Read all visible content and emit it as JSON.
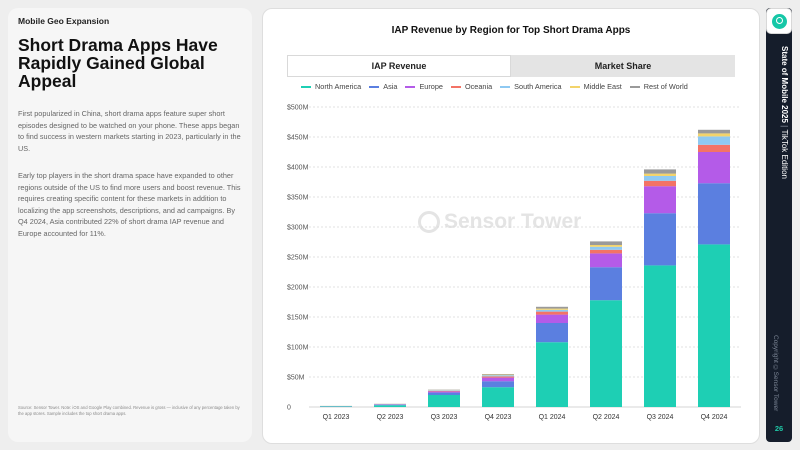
{
  "left": {
    "section": "Mobile Geo Expansion",
    "headline": "Short Drama Apps Have Rapidly Gained Global Appeal",
    "paragraph1": "First popularized in China, short drama apps feature super short episodes designed to be watched on your phone. These apps began to find success in western markets starting in 2023, particularly in the US.",
    "paragraph2": "Early top players in the short drama space have expanded to other regions outside of the US to find more users and boost revenue. This requires creating specific content for these markets in addition to localizing the app screenshots, descriptions, and ad campaigns. By Q4 2024, Asia contributed 22% of short drama IAP revenue and Europe accounted for 11%.",
    "footnote": "Source: Sensor Tower. Note: iOS and Google Play combined. Revenue is gross — inclusive of any percentage taken by the app stores. Sample includes the top short drama apps."
  },
  "tabs": {
    "active": "IAP Revenue",
    "inactive": "Market Share"
  },
  "watermark": "Sensor Tower",
  "rail": {
    "title_bold": "State of Mobile 2025",
    "separator": "|",
    "title_light": "TikTok Edition",
    "copyright": "Copyright ©Sensor Tower",
    "page": "26"
  },
  "chart_data": {
    "type": "bar",
    "stacked": true,
    "title": "IAP Revenue by Region for Top Short Drama Apps",
    "categories": [
      "Q1 2023",
      "Q2 2023",
      "Q3 2023",
      "Q4 2023",
      "Q1 2024",
      "Q2 2024",
      "Q3 2024",
      "Q4 2024"
    ],
    "y_ticks": [
      "0",
      "$50M",
      "$100M",
      "$150M",
      "$200M",
      "$250M",
      "$300M",
      "$350M",
      "$400M",
      "$450M",
      "$500M"
    ],
    "ylim": [
      0,
      500
    ],
    "grid": true,
    "legend_position": "top",
    "series": [
      {
        "name": "North America",
        "color": "#1ecfb4",
        "values": [
          1,
          3,
          20,
          33,
          108,
          178,
          236,
          271
        ]
      },
      {
        "name": "Asia",
        "color": "#5b7fe0",
        "values": [
          0.3,
          1,
          4,
          10,
          32,
          55,
          87,
          102
        ]
      },
      {
        "name": "Europe",
        "color": "#b45be8",
        "values": [
          0.2,
          0.5,
          2,
          6,
          14,
          23,
          45,
          52
        ]
      },
      {
        "name": "Oceania",
        "color": "#f37366",
        "values": [
          0.1,
          0.3,
          1,
          2,
          5,
          6,
          9,
          12
        ]
      },
      {
        "name": "South America",
        "color": "#8ec9f2",
        "values": [
          0.1,
          0.3,
          1,
          2,
          3,
          5,
          8,
          14
        ]
      },
      {
        "name": "Middle East",
        "color": "#f3d46b",
        "values": [
          0.1,
          0.2,
          0.5,
          1,
          2,
          3,
          4,
          5
        ]
      },
      {
        "name": "Rest of World",
        "color": "#9a9a9a",
        "values": [
          0.1,
          0.2,
          0.5,
          1,
          3,
          6,
          7,
          6
        ]
      }
    ]
  }
}
